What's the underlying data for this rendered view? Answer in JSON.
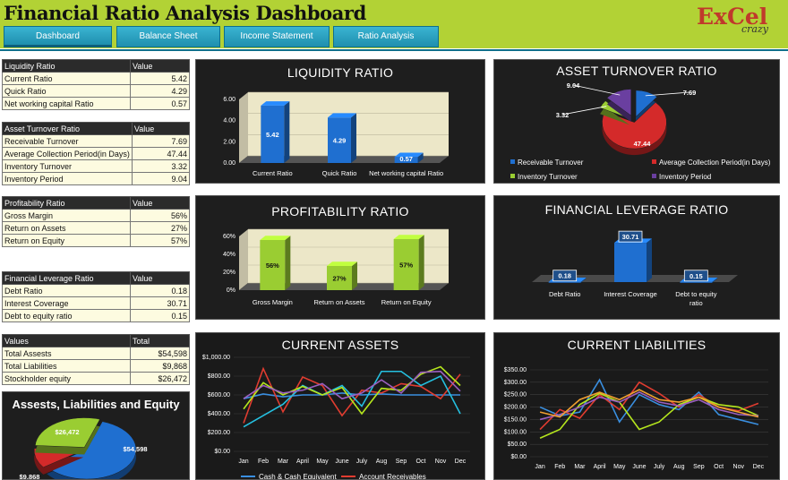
{
  "header": {
    "title": "Financial Ratio Analysis Dashboard",
    "logo_main": "ExCel",
    "logo_sub": "crazy",
    "tabs": [
      {
        "label": "Dashboard"
      },
      {
        "label": "Balance Sheet"
      },
      {
        "label": "Income Statement"
      },
      {
        "label": "Ratio Analysis"
      }
    ]
  },
  "tables": {
    "liquidity": {
      "name": "Liquidity Ratio",
      "value_header": "Value",
      "rows": [
        {
          "label": "Current Ratio",
          "value": "5.42"
        },
        {
          "label": "Quick Ratio",
          "value": "4.29"
        },
        {
          "label": "Net working capital Ratio",
          "value": "0.57"
        }
      ]
    },
    "asset_turnover": {
      "name": "Asset Turnover Ratio",
      "value_header": "Value",
      "rows": [
        {
          "label": "Receivable Turnover",
          "value": "7.69"
        },
        {
          "label": "Average Collection Period(in Days)",
          "value": "47.44"
        },
        {
          "label": "Inventory Turnover",
          "value": "3.32"
        },
        {
          "label": "Inventory Period",
          "value": "9.04"
        }
      ]
    },
    "profitability": {
      "name": "Profitability Ratio",
      "value_header": "Value",
      "rows": [
        {
          "label": "Gross Margin",
          "value": "56%"
        },
        {
          "label": "Return on Assets",
          "value": "27%"
        },
        {
          "label": "Return on Equity",
          "value": "57%"
        }
      ]
    },
    "leverage": {
      "name": "Financial Leverage Ratio",
      "value_header": "Value",
      "rows": [
        {
          "label": "Debt Ratio",
          "value": "0.18"
        },
        {
          "label": "Interest Coverage",
          "value": "30.71"
        },
        {
          "label": "Debt to equity ratio",
          "value": "0.15"
        }
      ]
    },
    "totals": {
      "name": "Values",
      "value_header": "Total",
      "rows": [
        {
          "label": "Total Assests",
          "value": "$54,598"
        },
        {
          "label": "Total Liabilities",
          "value": "$9,868"
        },
        {
          "label": "Stockholder equity",
          "value": "$26,472"
        }
      ]
    }
  },
  "colors": {
    "banner": "#b2d235",
    "tab": "#2aa3c4",
    "blue": "#1f6fd0",
    "green": "#9acd32",
    "red": "#d42a2a",
    "purple": "#6a3fa0",
    "panel": "#1e1e1e"
  },
  "chart_data": [
    {
      "id": "liquidity",
      "type": "bar",
      "title": "LIQUIDITY RATIO",
      "categories": [
        "Current Ratio",
        "Quick Ratio",
        "Net working capital Ratio"
      ],
      "values": [
        5.42,
        4.29,
        0.57
      ],
      "value_labels": [
        "5.42",
        "4.29",
        "0.57"
      ],
      "ylim": [
        0,
        6
      ],
      "yticks": [
        "0.00",
        "2.00",
        "4.00",
        "6.00"
      ],
      "yticks_values": [
        0,
        2,
        4,
        6
      ],
      "color": "#1f6fd0",
      "backwall": "#ece7c8"
    },
    {
      "id": "asset_turnover",
      "type": "pie",
      "title": "ASSET TURNOVER RATIO",
      "labels": [
        "Receivable Turnover",
        "Average Collection Period(in Days)",
        "Inventory Turnover",
        "Inventory Period"
      ],
      "values": [
        7.69,
        47.44,
        3.32,
        9.04
      ],
      "value_labels": [
        "7.69",
        "47.44",
        "3.32",
        "9.04"
      ],
      "colors": [
        "#1f6fd0",
        "#d42a2a",
        "#9acd32",
        "#6a3fa0"
      ],
      "legend": "bottom"
    },
    {
      "id": "profitability",
      "type": "bar",
      "title": "PROFITABILITY RATIO",
      "categories": [
        "Gross Margin",
        "Return on Assets",
        "Return on Equity"
      ],
      "values": [
        56,
        27,
        57
      ],
      "value_labels": [
        "56%",
        "27%",
        "57%"
      ],
      "ylim": [
        0,
        60
      ],
      "yticks": [
        "0%",
        "20%",
        "40%",
        "60%"
      ],
      "yticks_values": [
        0,
        20,
        40,
        60
      ],
      "color": "#9acd32",
      "backwall": "#ece7c8"
    },
    {
      "id": "leverage",
      "type": "bar",
      "title": "FINANCIAL LEVERAGE RATIO",
      "categories": [
        "Debt Ratio",
        "Interest Coverage",
        "Debt to equity ratio"
      ],
      "values": [
        0.18,
        30.71,
        0.15
      ],
      "value_labels": [
        "0.18",
        "30.71",
        "0.15"
      ],
      "ylim": [
        0,
        35
      ],
      "color": "#1f6fd0"
    },
    {
      "id": "current_assets",
      "type": "line",
      "title": "CURRENT ASSETS",
      "categories": [
        "Jan",
        "Feb",
        "Mar",
        "April",
        "May",
        "June",
        "July",
        "Aug",
        "Sep",
        "Oct",
        "Nov",
        "Dec"
      ],
      "ylim": [
        0,
        1000
      ],
      "yticks": [
        "$0.00",
        "$200.00",
        "$400.00",
        "$600.00",
        "$800.00",
        "$1,000.00"
      ],
      "yticks_values": [
        0,
        200,
        400,
        600,
        800,
        1000
      ],
      "series": [
        {
          "name": "Cash & Cash Equivalent",
          "color": "#3a8fe0",
          "values": [
            560,
            610,
            580,
            600,
            600,
            620,
            600,
            610,
            600,
            600,
            600,
            600
          ]
        },
        {
          "name": "Account Receivables",
          "color": "#e03c30",
          "values": [
            300,
            880,
            420,
            790,
            700,
            380,
            650,
            620,
            720,
            690,
            560,
            820
          ]
        },
        {
          "values": [
            260,
            380,
            500,
            700,
            600,
            700,
            480,
            850,
            850,
            700,
            800,
            400
          ],
          "color": "#25c0e0"
        },
        {
          "values": [
            450,
            730,
            600,
            690,
            600,
            680,
            400,
            670,
            650,
            820,
            900,
            700
          ],
          "color": "#b5e61d"
        },
        {
          "values": [
            560,
            700,
            620,
            650,
            720,
            560,
            620,
            760,
            620,
            840,
            850,
            640
          ],
          "color": "#9b5fc0"
        }
      ],
      "legend": "bottom"
    },
    {
      "id": "current_liabilities",
      "type": "line",
      "title": "CURRENT LIABILITIES",
      "categories": [
        "Jan",
        "Feb",
        "Mar",
        "April",
        "May",
        "June",
        "July",
        "Aug",
        "Sep",
        "Oct",
        "Nov",
        "Dec"
      ],
      "ylim": [
        0,
        350
      ],
      "yticks": [
        "$0.00",
        "$50.00",
        "$100.00",
        "$150.00",
        "$200.00",
        "$250.00",
        "$300.00",
        "$350.00"
      ],
      "yticks_values": [
        0,
        50,
        100,
        150,
        200,
        250,
        300,
        350
      ],
      "series": [
        {
          "values": [
            200,
            165,
            180,
            310,
            140,
            250,
            210,
            190,
            260,
            170,
            150,
            130
          ],
          "color": "#3a8fe0"
        },
        {
          "values": [
            110,
            190,
            155,
            250,
            190,
            300,
            255,
            200,
            250,
            200,
            185,
            215
          ],
          "color": "#e03c30"
        },
        {
          "values": [
            75,
            110,
            210,
            255,
            220,
            110,
            140,
            210,
            240,
            210,
            200,
            165
          ],
          "color": "#b5e61d"
        },
        {
          "values": [
            150,
            170,
            200,
            240,
            220,
            260,
            220,
            205,
            230,
            190,
            170,
            165
          ],
          "color": "#9b5fc0"
        },
        {
          "values": [
            180,
            160,
            230,
            260,
            230,
            270,
            230,
            220,
            240,
            200,
            180,
            160
          ],
          "color": "#f0a030"
        }
      ]
    },
    {
      "id": "assets_liabilities_equity",
      "type": "pie",
      "title": "Assests, Liabilities and Equity",
      "labels": [
        "Total Assests",
        "Total Liabilities",
        "Stockholder equity"
      ],
      "values": [
        54598,
        9868,
        26472
      ],
      "value_labels": [
        "$54,598",
        "$9,868",
        "$26,472"
      ],
      "colors": [
        "#1f6fd0",
        "#d42a2a",
        "#9acd32"
      ]
    }
  ]
}
